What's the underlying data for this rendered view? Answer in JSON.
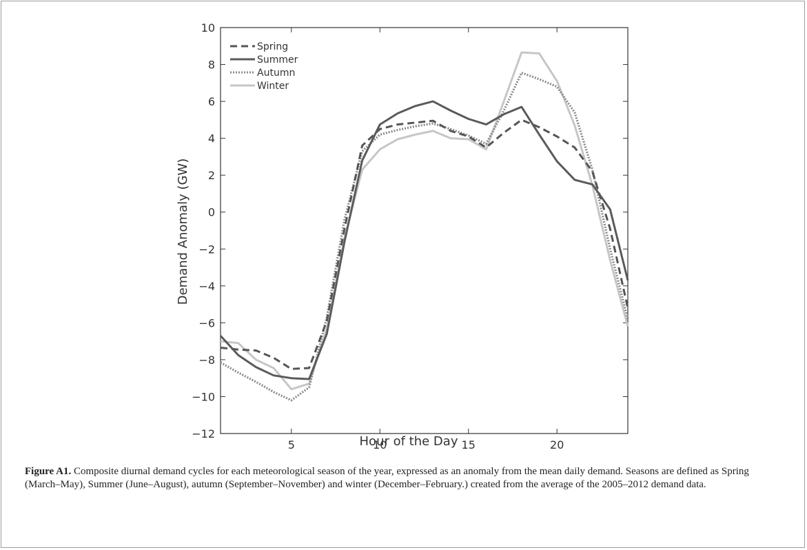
{
  "chart_data": {
    "type": "line",
    "xlabel": "Hour of the Day",
    "ylabel": "Demand Anomaly (GW)",
    "xlim": [
      1,
      24
    ],
    "ylim": [
      -12,
      10
    ],
    "x_ticks": [
      5,
      10,
      15,
      20
    ],
    "y_ticks": [
      -12,
      -10,
      -8,
      -6,
      -4,
      -2,
      0,
      2,
      4,
      6,
      8,
      10
    ],
    "grid": false,
    "legend_position": "top-left",
    "x": [
      1,
      2,
      3,
      4,
      5,
      6,
      7,
      8,
      9,
      10,
      11,
      12,
      13,
      14,
      15,
      16,
      17,
      18,
      19,
      20,
      21,
      22,
      23,
      24
    ],
    "series": [
      {
        "name": "Spring",
        "style": "dashed",
        "color": "#555555",
        "values": [
          -7.35,
          -7.45,
          -7.5,
          -7.9,
          -8.5,
          -8.45,
          -5.9,
          -0.9,
          3.6,
          4.5,
          4.75,
          4.85,
          4.95,
          4.4,
          4.1,
          3.5,
          4.3,
          5.0,
          4.6,
          4.1,
          3.5,
          2.2,
          -0.9,
          -5.2
        ]
      },
      {
        "name": "Summer",
        "style": "solid",
        "color": "#5a5a5a",
        "values": [
          -6.7,
          -7.75,
          -8.4,
          -8.85,
          -9.0,
          -9.05,
          -6.6,
          -1.6,
          2.8,
          4.75,
          5.35,
          5.75,
          6.0,
          5.5,
          5.05,
          4.75,
          5.3,
          5.7,
          4.2,
          2.75,
          1.75,
          1.5,
          0.15,
          -3.7
        ]
      },
      {
        "name": "Autumn",
        "style": "dotted",
        "color": "#8a8a8a",
        "values": [
          -8.15,
          -8.7,
          -9.2,
          -9.75,
          -10.2,
          -9.5,
          -5.7,
          -0.4,
          3.3,
          4.2,
          4.45,
          4.65,
          4.8,
          4.5,
          4.15,
          3.7,
          5.5,
          7.55,
          7.2,
          6.8,
          5.4,
          2.3,
          -2.0,
          -5.8
        ]
      },
      {
        "name": "Winter",
        "style": "solid",
        "color": "#c6c6c6",
        "values": [
          -7.0,
          -7.1,
          -8.0,
          -8.45,
          -9.6,
          -9.3,
          -6.3,
          -1.4,
          2.3,
          3.4,
          3.95,
          4.2,
          4.4,
          4.0,
          3.95,
          3.4,
          6.0,
          8.65,
          8.6,
          7.1,
          4.7,
          1.45,
          -2.6,
          -6.2
        ]
      }
    ]
  },
  "caption": {
    "label": "Figure A1.",
    "text": "Composite diurnal demand cycles for each meteorological season of the year, expressed as an anomaly from the mean daily demand. Seasons are defined as Spring (March–May), Summer (June–August), autumn (September–November) and winter (December–February.) created from the average of the 2005–2012 demand data."
  }
}
